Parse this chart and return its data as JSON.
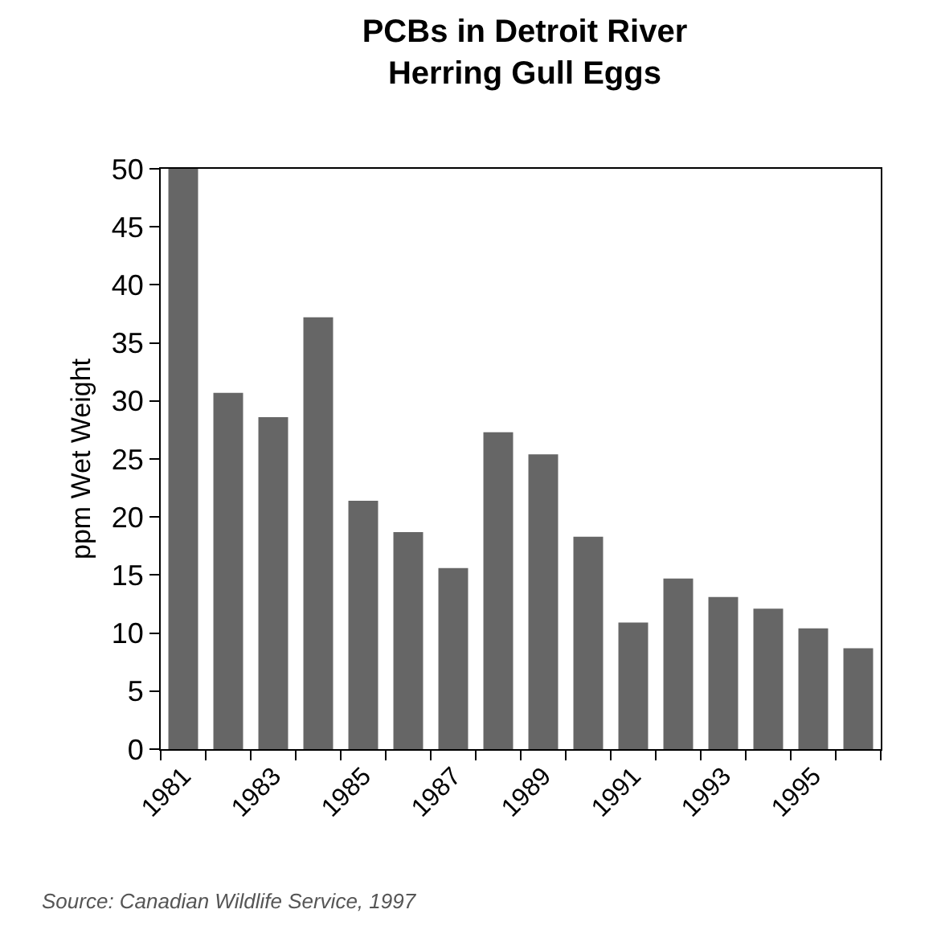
{
  "chart_data": {
    "type": "bar",
    "title": "PCBs in Detroit River\nHerring Gull Eggs",
    "ylabel": "ppm Wet Weight",
    "categories": [
      "1981",
      null,
      "1983",
      null,
      "1985",
      null,
      "1987",
      null,
      "1989",
      null,
      "1991",
      null,
      "1993",
      null,
      "1995",
      null
    ],
    "values": [
      50,
      30.7,
      28.6,
      37.2,
      21.4,
      18.7,
      15.6,
      27.3,
      25.4,
      18.3,
      10.9,
      14.7,
      13.1,
      12.1,
      10.4,
      8.7
    ],
    "color": "#666666",
    "ylim": [
      0,
      50
    ],
    "yticks": [
      0,
      5,
      10,
      15,
      20,
      25,
      30,
      35,
      40,
      45,
      50
    ],
    "annotations": [
      "Source: Canadian Wildlife Service, 1997"
    ]
  }
}
